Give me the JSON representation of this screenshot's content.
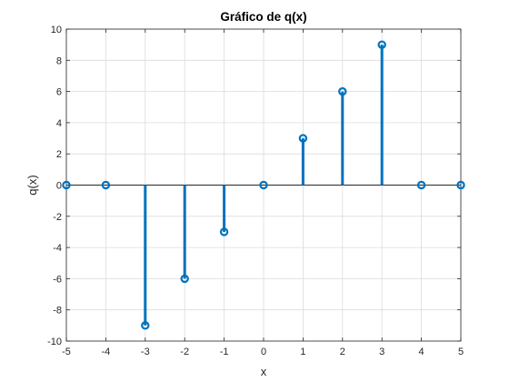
{
  "colors": {
    "stem": "#0072BD",
    "grid": "#dcdcdc",
    "axis": "#262626",
    "baseline": "#262626",
    "background": "#ffffff"
  },
  "chart_data": {
    "type": "stem",
    "title": "Gráfico de q(x)",
    "xlabel": "x",
    "ylabel": "q(x)",
    "xlim": [
      -5,
      5
    ],
    "ylim": [
      -10,
      10
    ],
    "grid": true,
    "marker": "circle",
    "x": [
      -5,
      -4,
      -3,
      -2,
      -1,
      0,
      1,
      2,
      3,
      4,
      5
    ],
    "y": [
      0,
      0,
      -9,
      -6,
      -3,
      0,
      3,
      6,
      9,
      0,
      0
    ],
    "xticks": [
      -5,
      -4,
      -3,
      -2,
      -1,
      0,
      1,
      2,
      3,
      4,
      5
    ],
    "yticks": [
      -10,
      -8,
      -6,
      -4,
      -2,
      0,
      2,
      4,
      6,
      8,
      10
    ],
    "xtick_labels": [
      "-5",
      "-4",
      "-3",
      "-2",
      "-1",
      "0",
      "1",
      "2",
      "3",
      "4",
      "5"
    ],
    "ytick_labels": [
      "-10",
      "-8",
      "-6",
      "-4",
      "-2",
      "0",
      "2",
      "4",
      "6",
      "8",
      "10"
    ]
  }
}
